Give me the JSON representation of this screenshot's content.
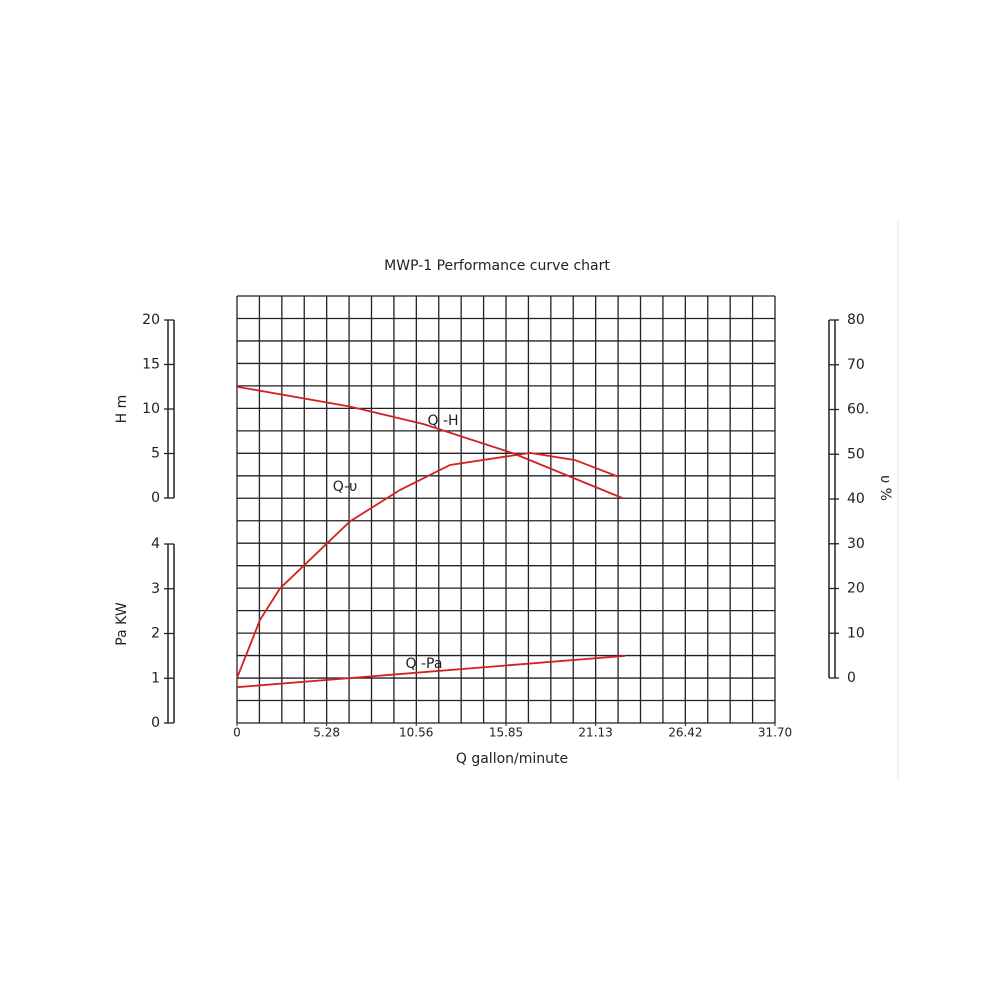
{
  "chart_data": {
    "type": "line",
    "title": "MWP-1 Performance curve chart",
    "xlabel": "Q gallon/minute",
    "xlim": [
      0,
      31.7
    ],
    "xticks": [
      0,
      5.28,
      10.56,
      15.85,
      21.13,
      26.42,
      {
        "value": 31.7,
        "label": "31.70"
      }
    ],
    "ylabel": "H m",
    "ylim": [
      0,
      20
    ],
    "yticks": [
      0,
      5,
      10,
      15,
      20
    ],
    "y2label": "Pa KW",
    "y2lim": [
      0,
      4
    ],
    "y2ticks": [
      0,
      1,
      2,
      3,
      4
    ],
    "y3label": "υ %",
    "y3lim": [
      0,
      80
    ],
    "y3ticks": [
      0,
      10,
      20,
      30,
      40,
      50,
      {
        "value": 60,
        "label": "60."
      },
      70,
      80
    ],
    "grid": true,
    "series": [
      {
        "name": "Q -H",
        "color": "#d42020",
        "axis": "y",
        "x": [
          0,
          6.6,
          11,
          16.3,
          22.7
        ],
        "values": [
          12.5,
          10.3,
          8.3,
          5,
          0
        ]
      },
      {
        "name": "Q-υ",
        "color": "#d42020",
        "axis": "y3",
        "x": [
          0,
          1.36,
          2.53,
          6.66,
          9.6,
          12.55,
          17.27,
          19.92,
          22.45
        ],
        "values": [
          0,
          13,
          20,
          35,
          42,
          47.6,
          50.3,
          48.7,
          45
        ]
      },
      {
        "name": "Q -Pa",
        "color": "#d42020",
        "axis": "y2",
        "x": [
          0,
          22.86
        ],
        "values": [
          0.8,
          1.5
        ]
      }
    ]
  }
}
